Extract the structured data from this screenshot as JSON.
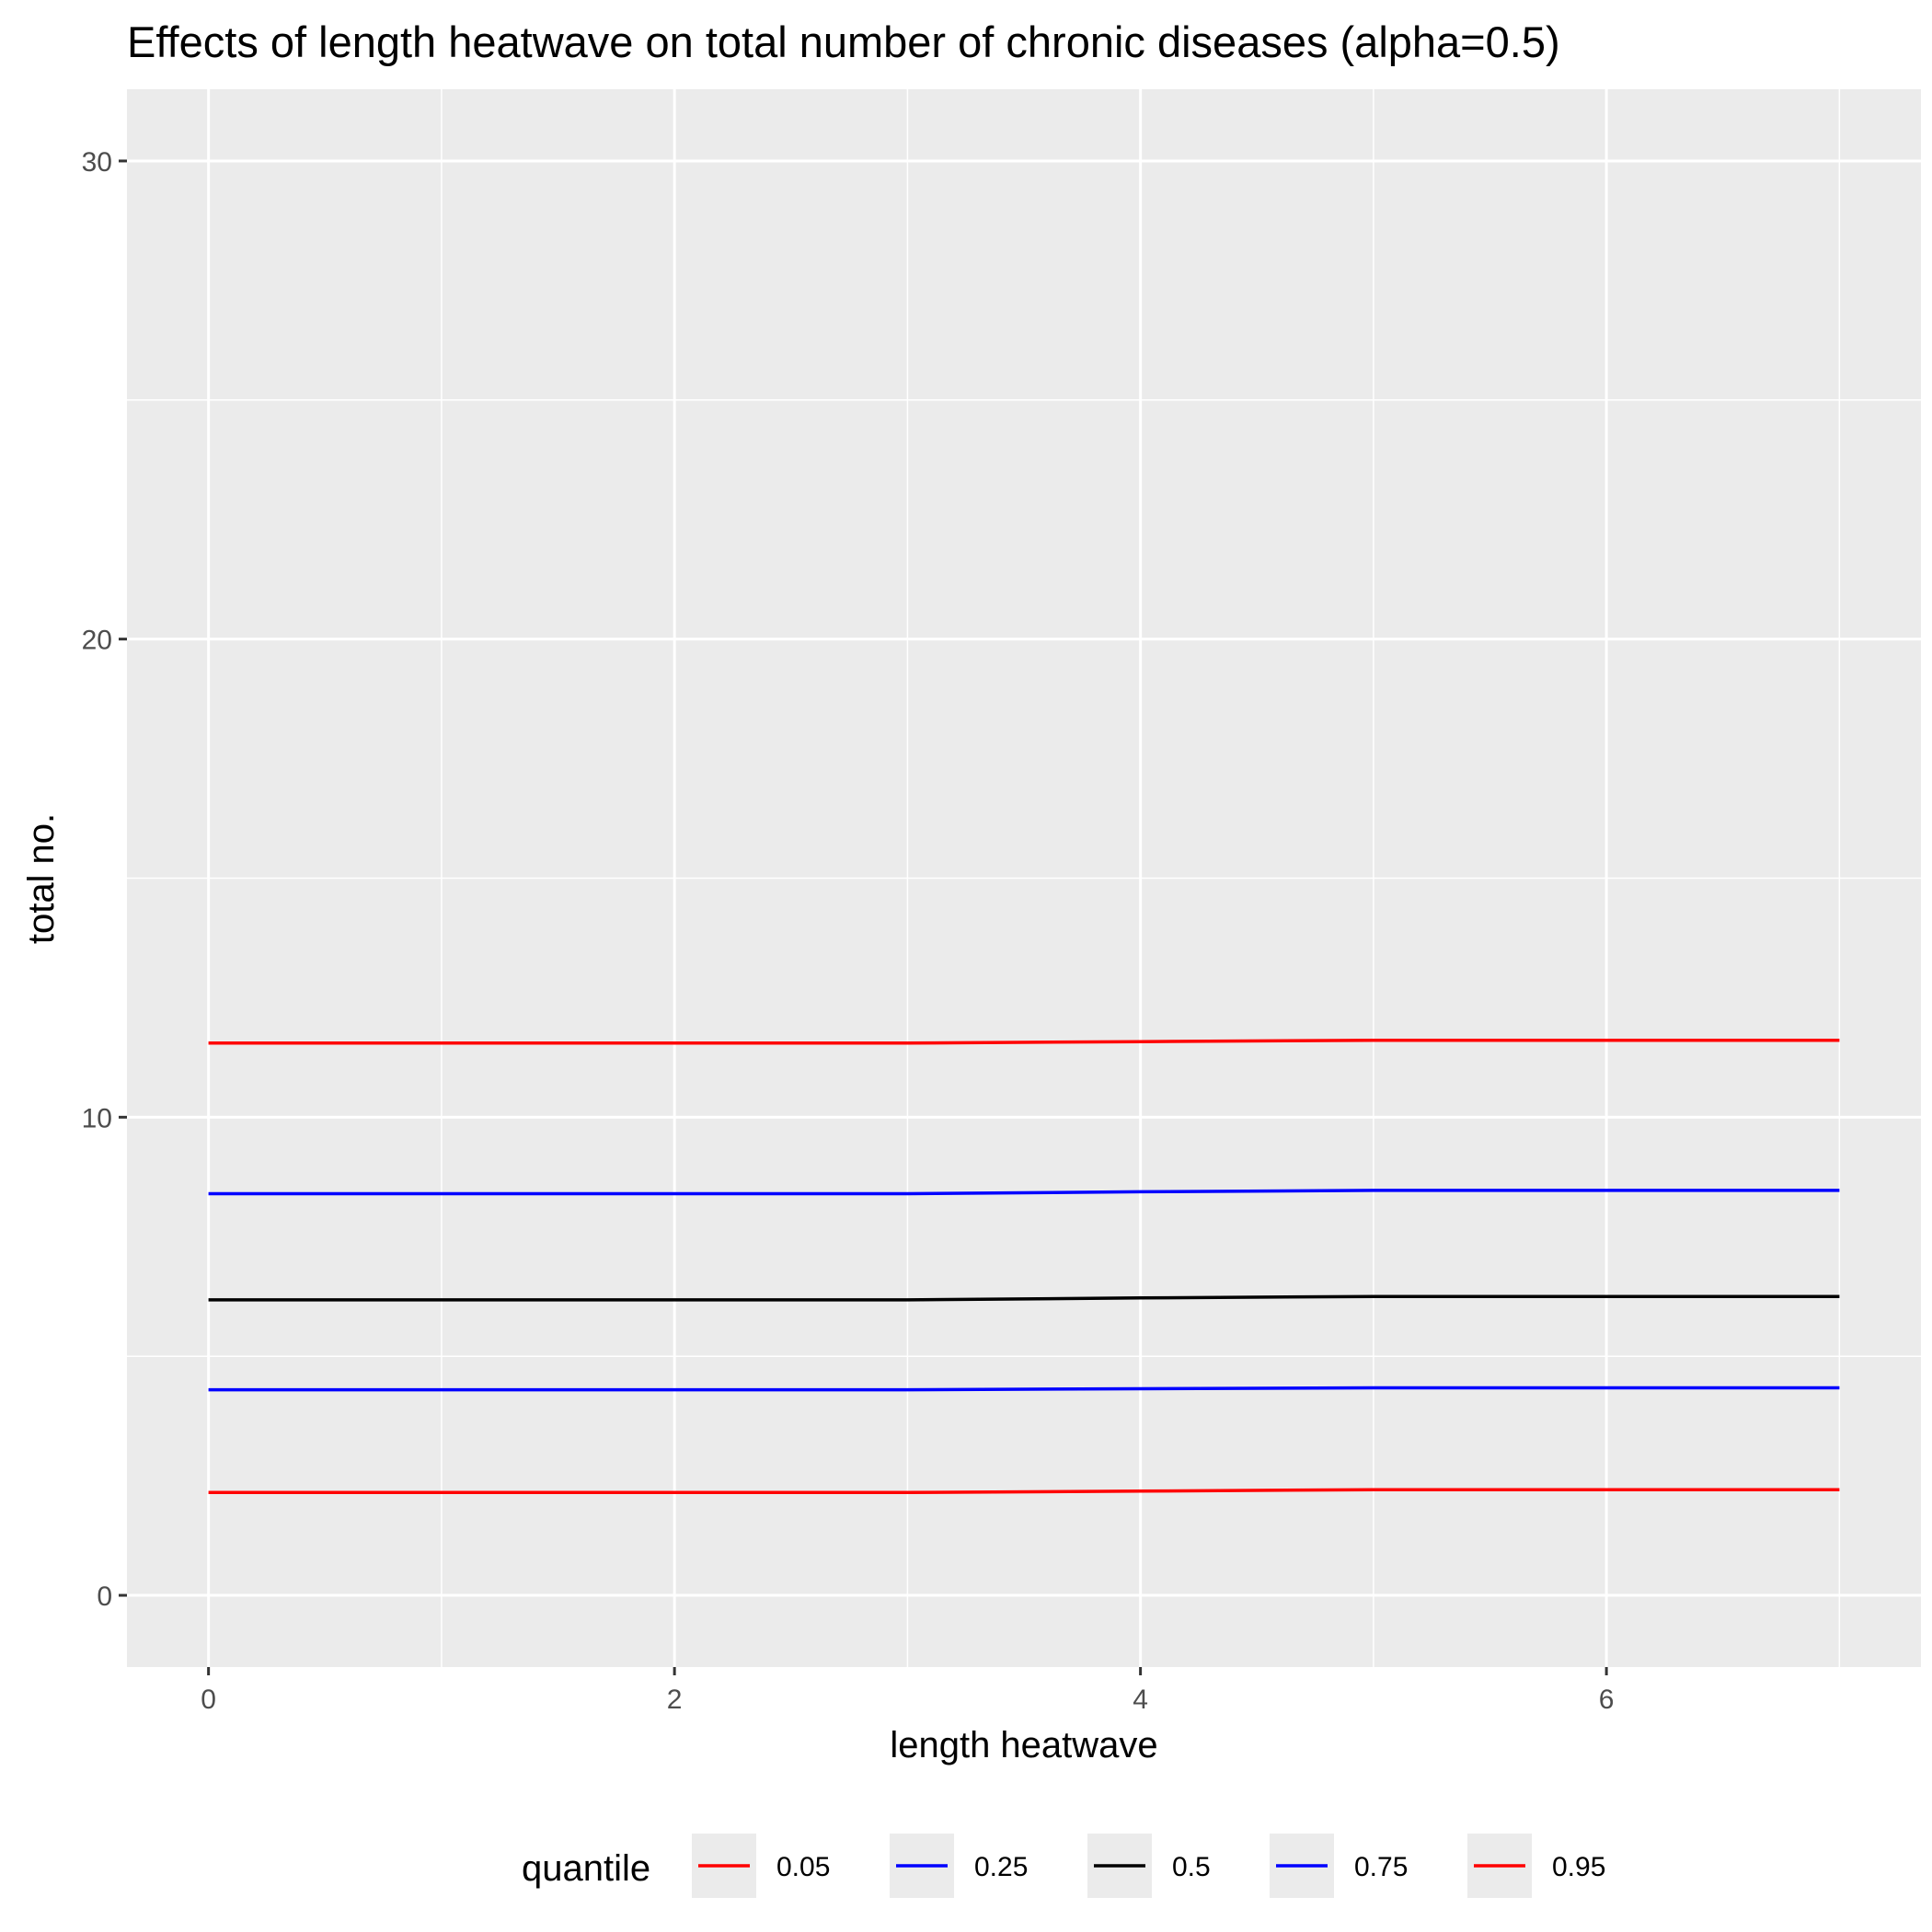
{
  "chart_data": {
    "type": "line",
    "title": "Effects of length heatwave on total number of chronic diseases (alpha=0.5)",
    "xlabel": "length heatwave",
    "ylabel": "total no.",
    "xlim": [
      -0.35,
      7.35
    ],
    "ylim": [
      -1.5,
      31.5
    ],
    "x_ticks": [
      0,
      2,
      4,
      6
    ],
    "y_ticks": [
      0,
      10,
      20,
      30
    ],
    "x_tick_labels": [
      "0",
      "2",
      "4",
      "6"
    ],
    "y_tick_labels": [
      "0",
      "10",
      "20",
      "30"
    ],
    "grid": true,
    "background": "#EBEBEB",
    "legend": {
      "title": "quantile",
      "position": "bottom"
    },
    "x": [
      0,
      1,
      2,
      3,
      4,
      5,
      6,
      7
    ],
    "series": [
      {
        "name": "0.05",
        "color": "#FF0000",
        "values": [
          2.15,
          2.15,
          2.15,
          2.15,
          2.18,
          2.21,
          2.21,
          2.21
        ]
      },
      {
        "name": "0.25",
        "color": "#0000FF",
        "values": [
          4.3,
          4.3,
          4.3,
          4.3,
          4.32,
          4.34,
          4.34,
          4.34
        ]
      },
      {
        "name": "0.5",
        "color": "#000000",
        "values": [
          6.18,
          6.18,
          6.18,
          6.18,
          6.22,
          6.25,
          6.25,
          6.25
        ]
      },
      {
        "name": "0.75",
        "color": "#0000FF",
        "values": [
          8.4,
          8.4,
          8.4,
          8.4,
          8.44,
          8.47,
          8.47,
          8.47
        ]
      },
      {
        "name": "0.95",
        "color": "#FF0000",
        "values": [
          11.55,
          11.55,
          11.55,
          11.55,
          11.58,
          11.61,
          11.61,
          11.61
        ]
      }
    ]
  }
}
